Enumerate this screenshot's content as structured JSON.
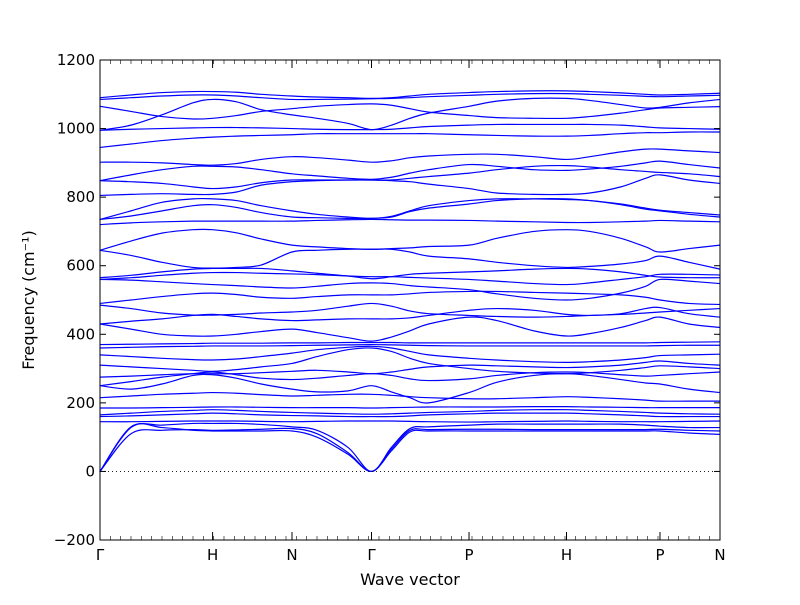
{
  "chart_data": {
    "type": "line",
    "xlabel": "Wave vector",
    "ylabel": "Frequency (cm⁻¹)",
    "ylim": [
      -200,
      1200
    ],
    "yticks": [
      -200,
      0,
      200,
      400,
      600,
      800,
      1000,
      1200
    ],
    "kpath": [
      "Γ",
      "H",
      "N",
      "Γ",
      "P",
      "H",
      "P",
      "N"
    ],
    "kpos": [
      0,
      0.1816,
      0.3097,
      0.4379,
      0.5952,
      0.7524,
      0.9032,
      1.0
    ],
    "xlim": [
      0,
      1.0
    ],
    "zero_line": true,
    "line_color": "#0000ff",
    "series_samples": [
      0,
      0.05,
      0.1,
      0.15,
      0.1816,
      0.22,
      0.26,
      0.3097,
      0.35,
      0.4,
      0.4379,
      0.47,
      0.5,
      0.53,
      0.5952,
      0.64,
      0.7,
      0.7524,
      0.79,
      0.84,
      0.88,
      0.9032,
      0.95,
      1.0
    ],
    "series": [
      {
        "values": [
          0,
          130,
          128,
          120,
          118,
          118,
          118,
          118,
          100,
          50,
          0,
          60,
          115,
          118,
          118,
          118,
          118,
          118,
          118,
          118,
          118,
          118,
          112,
          108
        ]
      },
      {
        "values": [
          0,
          110,
          120,
          122,
          120,
          121,
          123,
          125,
          110,
          55,
          0,
          65,
          120,
          122,
          123,
          123,
          122,
          122,
          122,
          122,
          122,
          123,
          120,
          118
        ]
      },
      {
        "values": [
          0,
          128,
          135,
          140,
          140,
          140,
          137,
          130,
          120,
          70,
          0,
          70,
          125,
          130,
          135,
          138,
          138,
          138,
          138,
          138,
          135,
          132,
          128,
          128
        ]
      },
      {
        "values": [
          145,
          145,
          146,
          147,
          147,
          147,
          146,
          145,
          146,
          147,
          147,
          147,
          146,
          145,
          144,
          145,
          146,
          147,
          146,
          145,
          145,
          145,
          146,
          147
        ]
      },
      {
        "values": [
          160,
          162,
          165,
          168,
          170,
          168,
          165,
          163,
          162,
          160,
          160,
          160,
          162,
          165,
          168,
          170,
          170,
          170,
          168,
          165,
          162,
          160,
          160,
          160
        ]
      },
      {
        "values": [
          165,
          170,
          175,
          178,
          180,
          178,
          175,
          172,
          170,
          168,
          167,
          168,
          170,
          172,
          175,
          178,
          180,
          180,
          178,
          175,
          172,
          170,
          168,
          167
        ]
      },
      {
        "values": [
          185,
          185,
          186,
          187,
          188,
          188,
          187,
          186,
          186,
          186,
          185,
          186,
          187,
          188,
          188,
          188,
          189,
          189,
          188,
          187,
          186,
          186,
          186,
          186
        ]
      },
      {
        "values": [
          215,
          220,
          225,
          228,
          230,
          228,
          224,
          220,
          222,
          225,
          225,
          222,
          218,
          215,
          212,
          212,
          215,
          218,
          216,
          212,
          208,
          205,
          205,
          205
        ]
      },
      {
        "values": [
          250,
          240,
          255,
          280,
          282,
          272,
          255,
          240,
          232,
          235,
          250,
          232,
          215,
          200,
          230,
          260,
          280,
          285,
          280,
          268,
          258,
          255,
          240,
          230
        ]
      },
      {
        "values": [
          250,
          262,
          275,
          285,
          290,
          282,
          272,
          268,
          272,
          280,
          285,
          280,
          270,
          265,
          270,
          280,
          288,
          290,
          288,
          282,
          278,
          280,
          285,
          290
        ]
      },
      {
        "values": [
          275,
          278,
          282,
          285,
          285,
          285,
          288,
          292,
          295,
          290,
          285,
          290,
          298,
          305,
          310,
          308,
          305,
          303,
          305,
          310,
          318,
          322,
          315,
          310
        ]
      },
      {
        "values": [
          310,
          305,
          300,
          295,
          292,
          297,
          305,
          315,
          335,
          355,
          360,
          350,
          330,
          315,
          300,
          292,
          287,
          285,
          288,
          295,
          303,
          308,
          305,
          300
        ]
      },
      {
        "values": [
          340,
          335,
          330,
          326,
          325,
          328,
          335,
          345,
          355,
          362,
          365,
          360,
          350,
          340,
          330,
          325,
          320,
          318,
          320,
          325,
          332,
          338,
          340,
          342
        ]
      },
      {
        "values": [
          360,
          362,
          364,
          365,
          366,
          366,
          366,
          367,
          368,
          369,
          370,
          369,
          368,
          367,
          366,
          366,
          366,
          366,
          366,
          366,
          366,
          367,
          368,
          368
        ]
      },
      {
        "values": [
          370,
          371,
          372,
          373,
          374,
          374,
          374,
          375,
          375,
          376,
          376,
          376,
          375,
          375,
          375,
          375,
          375,
          375,
          375,
          375,
          375,
          376,
          377,
          378
        ]
      },
      {
        "values": [
          430,
          415,
          400,
          395,
          395,
          400,
          408,
          415,
          405,
          390,
          380,
          392,
          410,
          430,
          450,
          440,
          410,
          395,
          402,
          420,
          440,
          450,
          430,
          420
        ]
      },
      {
        "values": [
          430,
          438,
          445,
          455,
          458,
          452,
          445,
          440,
          442,
          445,
          445,
          445,
          448,
          455,
          470,
          475,
          470,
          458,
          455,
          460,
          475,
          478,
          460,
          450
        ]
      },
      {
        "values": [
          485,
          475,
          462,
          456,
          456,
          458,
          462,
          465,
          470,
          482,
          490,
          482,
          468,
          460,
          455,
          452,
          450,
          452,
          455,
          458,
          462,
          465,
          470,
          475
        ]
      },
      {
        "values": [
          490,
          500,
          510,
          518,
          520,
          516,
          508,
          505,
          510,
          515,
          515,
          515,
          518,
          522,
          525,
          525,
          522,
          520,
          518,
          515,
          508,
          500,
          490,
          487
        ]
      },
      {
        "values": [
          560,
          558,
          553,
          548,
          545,
          542,
          538,
          535,
          540,
          548,
          550,
          548,
          542,
          538,
          530,
          518,
          505,
          500,
          505,
          520,
          540,
          560,
          555,
          548
        ]
      },
      {
        "values": [
          560,
          565,
          572,
          578,
          580,
          580,
          578,
          576,
          574,
          570,
          568,
          568,
          566,
          564,
          560,
          555,
          548,
          545,
          550,
          560,
          568,
          575,
          575,
          573
        ]
      },
      {
        "values": [
          565,
          572,
          582,
          590,
          592,
          592,
          592,
          585,
          578,
          570,
          562,
          568,
          575,
          578,
          582,
          585,
          590,
          592,
          590,
          582,
          572,
          567,
          565,
          565
        ]
      },
      {
        "values": [
          645,
          672,
          695,
          705,
          705,
          696,
          678,
          660,
          655,
          650,
          648,
          650,
          652,
          656,
          660,
          680,
          700,
          705,
          700,
          680,
          655,
          640,
          650,
          660
        ]
      },
      {
        "values": [
          645,
          630,
          610,
          595,
          593,
          595,
          602,
          640,
          645,
          648,
          648,
          648,
          640,
          628,
          620,
          610,
          600,
          595,
          598,
          605,
          615,
          628,
          610,
          590
        ]
      },
      {
        "values": [
          720,
          725,
          728,
          730,
          730,
          730,
          730,
          730,
          732,
          734,
          735,
          734,
          733,
          733,
          732,
          730,
          728,
          726,
          726,
          728,
          730,
          732,
          730,
          728
        ]
      },
      {
        "values": [
          735,
          760,
          785,
          795,
          795,
          790,
          775,
          760,
          750,
          742,
          738,
          744,
          760,
          775,
          790,
          795,
          795,
          793,
          790,
          780,
          768,
          762,
          755,
          748
        ]
      },
      {
        "values": [
          735,
          745,
          760,
          775,
          778,
          770,
          755,
          742,
          740,
          738,
          738,
          742,
          758,
          768,
          780,
          790,
          795,
          795,
          790,
          778,
          765,
          760,
          750,
          742
        ]
      },
      {
        "values": [
          805,
          808,
          810,
          808,
          808,
          815,
          835,
          845,
          848,
          850,
          850,
          848,
          845,
          838,
          825,
          812,
          808,
          808,
          812,
          830,
          855,
          865,
          850,
          840
        ]
      },
      {
        "values": [
          848,
          845,
          840,
          830,
          825,
          830,
          842,
          850,
          850,
          850,
          850,
          850,
          855,
          860,
          870,
          880,
          890,
          892,
          888,
          880,
          875,
          872,
          868,
          860
        ]
      },
      {
        "values": [
          848,
          865,
          880,
          890,
          890,
          888,
          880,
          868,
          862,
          855,
          852,
          858,
          870,
          880,
          895,
          890,
          880,
          878,
          882,
          890,
          900,
          905,
          895,
          885
        ]
      },
      {
        "values": [
          902,
          902,
          900,
          895,
          893,
          898,
          910,
          918,
          915,
          908,
          902,
          906,
          915,
          920,
          925,
          925,
          918,
          910,
          918,
          932,
          940,
          940,
          935,
          930
        ]
      },
      {
        "values": [
          945,
          955,
          965,
          972,
          975,
          978,
          980,
          982,
          985,
          985,
          985,
          985,
          985,
          985,
          982,
          980,
          978,
          978,
          980,
          985,
          988,
          988,
          990,
          990
        ]
      },
      {
        "values": [
          995,
          998,
          1000,
          1002,
          1003,
          1003,
          1002,
          1000,
          998,
          997,
          997,
          998,
          1002,
          1006,
          1010,
          1012,
          1012,
          1012,
          1012,
          1010,
          1005,
          1002,
          1000,
          998
        ]
      },
      {
        "values": [
          995,
          1010,
          1040,
          1075,
          1085,
          1078,
          1055,
          1040,
          1030,
          1015,
          997,
          1010,
          1030,
          1045,
          1065,
          1080,
          1088,
          1088,
          1082,
          1070,
          1060,
          1062,
          1075,
          1085
        ]
      },
      {
        "values": [
          1085,
          1090,
          1095,
          1098,
          1098,
          1095,
          1090,
          1085,
          1085,
          1086,
          1087,
          1088,
          1090,
          1093,
          1097,
          1100,
          1102,
          1102,
          1100,
          1097,
          1094,
          1093,
          1095,
          1097
        ]
      },
      {
        "values": [
          1090,
          1098,
          1105,
          1108,
          1108,
          1106,
          1100,
          1095,
          1092,
          1090,
          1088,
          1090,
          1095,
          1100,
          1105,
          1108,
          1110,
          1110,
          1108,
          1104,
          1100,
          1098,
          1100,
          1103
        ]
      },
      {
        "values": [
          1065,
          1050,
          1035,
          1028,
          1030,
          1038,
          1050,
          1058,
          1065,
          1070,
          1072,
          1068,
          1058,
          1048,
          1038,
          1032,
          1030,
          1030,
          1035,
          1045,
          1055,
          1060,
          1062,
          1064
        ]
      }
    ]
  }
}
